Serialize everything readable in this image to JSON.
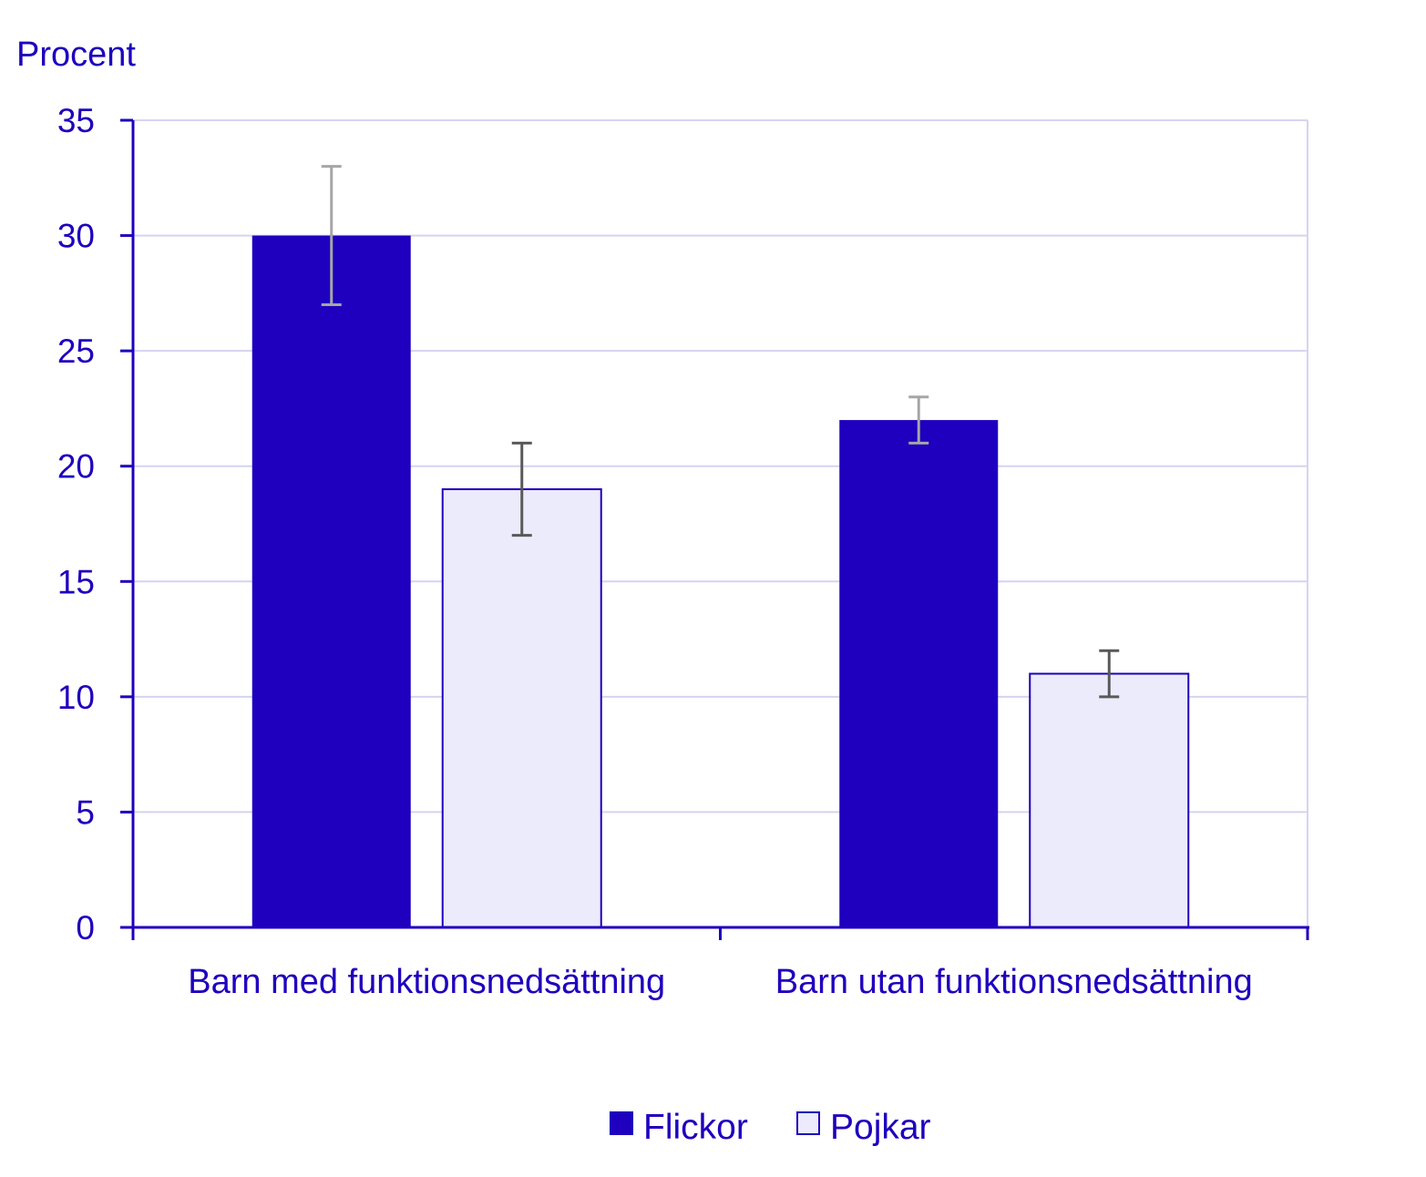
{
  "chart_data": {
    "type": "bar",
    "ylabel": "Procent",
    "ylim": [
      0,
      35
    ],
    "yticks": [
      0,
      5,
      10,
      15,
      20,
      25,
      30,
      35
    ],
    "grid": true,
    "legend_position": "bottom-center",
    "categories": [
      "Barn med funktionsnedsättning",
      "Barn utan funktionsnedsättning"
    ],
    "series": [
      {
        "name": "Flickor",
        "color": "#1e00be",
        "values": [
          30,
          22
        ],
        "error_low": [
          27,
          21
        ],
        "error_high": [
          33,
          23
        ]
      },
      {
        "name": "Pojkar",
        "color": "#ecebfc",
        "values": [
          19,
          11
        ],
        "error_low": [
          17,
          10
        ],
        "error_high": [
          21,
          12
        ]
      }
    ]
  },
  "colors": {
    "text": "#1e00be",
    "axis": "#1e00be",
    "grid": "#d6d3f0",
    "error_bar_light": "#a6a6a6",
    "error_bar_dark": "#595959",
    "bar_outline": "#1e00be"
  }
}
